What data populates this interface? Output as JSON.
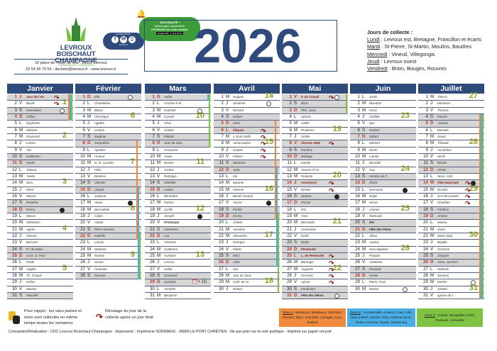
{
  "header": {
    "logo": [
      "LEVROUX",
      "BOISCHAUT",
      "CHAMPAGNE"
    ],
    "logo_sub": "COMMUNAUTÉ • COMMUNES",
    "address": "10 place de l'hôtel de ville - 36110 Levroux",
    "contact": "02 54 35 70 54 - dechets@levroux.fr - www.levroux.fr",
    "social_label": "SUIVEZ-NOUS :",
    "social_url": "levroux.fr",
    "app": {
      "title": "NOUVEAUTÉ !",
      "line1": "téléchargez l'application",
      "line2": "LEVROUX sur votre mobile",
      "store1": "Google Play",
      "store2": "App Store"
    },
    "year": "2026"
  },
  "collecte": {
    "title": "Jours de collecte :",
    "items": [
      {
        "day": "Lundi",
        "places": " : Levroux est,  Bretagne, Francillon et écarts"
      },
      {
        "day": "Mardi",
        "places": " : St-Pierre, St-Martin, Moulins, Baudres"
      },
      {
        "day": "Mercredi",
        "places": " : Vineuil, Villegongis"
      },
      {
        "day": "Jeudi",
        "places": " : Levroux ouest"
      },
      {
        "day": "Vendredi",
        "places": " : Brion, Bouges, Rouvres"
      }
    ]
  },
  "colors": {
    "zoneA": "#ef8a3c",
    "zoneB": "#4aaee6",
    "zoneC": "#7ec242",
    "header": "#2f4b7c"
  },
  "months": [
    {
      "name": "Janvier",
      "days": [
        [
          "J",
          "Jour de l'An"
        ],
        [
          "V",
          "Basile"
        ],
        [
          "S",
          "Geneviève"
        ],
        [
          "D",
          "Odilon"
        ],
        [
          "L",
          "Épiphanie"
        ],
        [
          "M",
          "Mélaine"
        ],
        [
          "M",
          "Raymond"
        ],
        [
          "J",
          "Lucien"
        ],
        [
          "V",
          "Alix"
        ],
        [
          "S",
          "Guillaume"
        ],
        [
          "D",
          "Paulin"
        ],
        [
          "L",
          "Tatiana"
        ],
        [
          "M",
          "Yvette"
        ],
        [
          "M",
          "Nina"
        ],
        [
          "J",
          "Rémi"
        ],
        [
          "V",
          "Marcel"
        ],
        [
          "S",
          "Roseline"
        ],
        [
          "D",
          "Prisca"
        ],
        [
          "L",
          "Marius"
        ],
        [
          "M",
          "Sébastien"
        ],
        [
          "M",
          "Agnès"
        ],
        [
          "J",
          "Vincent"
        ],
        [
          "V",
          "Barnard"
        ],
        [
          "S",
          "Fr. de Sales"
        ],
        [
          "D",
          "Conv. S. Paul"
        ],
        [
          "L",
          "Paule"
        ],
        [
          "M",
          "Angèle"
        ],
        [
          "M",
          "Th. d'Aquin"
        ],
        [
          "J",
          "Gildas"
        ],
        [
          "V",
          "Martine"
        ],
        [
          "S",
          "Marcelle"
        ]
      ],
      "weeks": {
        "2": "1",
        "7": "2",
        "14": "3",
        "21": "4",
        "27": "5"
      },
      "holidays": [
        1
      ],
      "moons": {
        "3": "full",
        "18": "new"
      },
      "arrows": [
        1,
        2
      ],
      "school": [
        {
          "zone": "A",
          "from": 1,
          "to": 4
        },
        {
          "zone": "B",
          "from": 1,
          "to": 4
        },
        {
          "zone": "C",
          "from": 1,
          "to": 4
        }
      ]
    },
    {
      "name": "Février",
      "days": [
        [
          "D",
          "Ella"
        ],
        [
          "L",
          "Chandeleur"
        ],
        [
          "M",
          "Blaise"
        ],
        [
          "M",
          "Véronique"
        ],
        [
          "J",
          "Agathe"
        ],
        [
          "V",
          "Gaston"
        ],
        [
          "S",
          "Eugénie"
        ],
        [
          "D",
          "Jacqueline"
        ],
        [
          "L",
          "Apolline"
        ],
        [
          "M",
          "Arnaud"
        ],
        [
          "M",
          "N.-D. Lourdes"
        ],
        [
          "J",
          "Félix"
        ],
        [
          "V",
          "Béatrice"
        ],
        [
          "S",
          "Valentin"
        ],
        [
          "D",
          "Claude"
        ],
        [
          "L",
          "Julienne"
        ],
        [
          "M",
          "Alexis"
        ],
        [
          "M",
          "Bernadette"
        ],
        [
          "J",
          "Gabin"
        ],
        [
          "V",
          "Aimée"
        ],
        [
          "S",
          "Pierre Damien"
        ],
        [
          "D",
          "Isabelle"
        ],
        [
          "L",
          "Lazare"
        ],
        [
          "M",
          "Modeste"
        ],
        [
          "M",
          "Roméo"
        ],
        [
          "J",
          "Nestor"
        ],
        [
          "V",
          "Honorine"
        ],
        [
          "S",
          "Romain"
        ]
      ],
      "weeks": {
        "4": "6",
        "11": "7",
        "18": "8",
        "25": "9"
      },
      "holidays": [],
      "moons": {
        "1": "full",
        "17": "new"
      },
      "arrows": [],
      "school": [
        {
          "zone": "A",
          "from": 8,
          "to": 22
        },
        {
          "zone": "B",
          "from": 15,
          "to": 28
        },
        {
          "zone": "C",
          "from": 22,
          "to": 28
        }
      ]
    },
    {
      "name": "Mars",
      "days": [
        [
          "D",
          "Aubin"
        ],
        [
          "L",
          "Charles le B."
        ],
        [
          "M",
          "Guénolé"
        ],
        [
          "M",
          "Casimir"
        ],
        [
          "J",
          "Olive"
        ],
        [
          "V",
          "Colette"
        ],
        [
          "S",
          "Félicité"
        ],
        [
          "D",
          "Jean de Dieu"
        ],
        [
          "L",
          "Françoise"
        ],
        [
          "M",
          "Vivian"
        ],
        [
          "M",
          "Rosine"
        ],
        [
          "J",
          "Justine"
        ],
        [
          "V",
          "Rodrigue"
        ],
        [
          "S",
          "Mathilde"
        ],
        [
          "D",
          "Louise"
        ],
        [
          "L",
          "Bénédicte"
        ],
        [
          "M",
          "Patrice"
        ],
        [
          "M",
          "Cyrille"
        ],
        [
          "J",
          "Joseph"
        ],
        [
          "V",
          "Printemps"
        ],
        [
          "S",
          "Clémence"
        ],
        [
          "D",
          "Léa"
        ],
        [
          "L",
          "Victorien"
        ],
        [
          "M",
          "Catherine"
        ],
        [
          "M",
          "Humbert"
        ],
        [
          "J",
          "Larissa"
        ],
        [
          "V",
          "Habib"
        ],
        [
          "S",
          "Gontrand"
        ],
        [
          "D",
          "Gwladys"
        ],
        [
          "L",
          "Amédée"
        ],
        [
          "M",
          "Benjamin"
        ]
      ],
      "weeks": {
        "4": "10",
        "11": "11",
        "18": "12",
        "25": "13"
      },
      "holidays": [],
      "bold": [
        20
      ],
      "moons": {
        "3": "full",
        "19": "new"
      },
      "arrows": [],
      "clock": {
        "day": 29,
        "label": "+ 1h"
      },
      "school": [
        {
          "zone": "B",
          "from": 1,
          "to": 1
        },
        {
          "zone": "C",
          "from": 1,
          "to": 8
        }
      ]
    },
    {
      "name": "Avril",
      "days": [
        [
          "M",
          "Hugues"
        ],
        [
          "J",
          "Sandrine"
        ],
        [
          "V",
          "Richard"
        ],
        [
          "S",
          "Isidore"
        ],
        [
          "D",
          "Irène"
        ],
        [
          "L",
          "Pâques"
        ],
        [
          "M",
          "J.-B.de Salle"
        ],
        [
          "M",
          "Annonciation"
        ],
        [
          "J",
          "Gautier"
        ],
        [
          "V",
          "Fulbert"
        ],
        [
          "S",
          "Stanislas"
        ],
        [
          "D",
          "Jules"
        ],
        [
          "L",
          "Ida"
        ],
        [
          "M",
          "Maxime"
        ],
        [
          "M",
          "Paterne"
        ],
        [
          "J",
          "Benoît Joseph"
        ],
        [
          "V",
          "Anicet"
        ],
        [
          "S",
          "Parfait"
        ],
        [
          "D",
          "Emma"
        ],
        [
          "L",
          "Odette"
        ],
        [
          "M",
          "Anselme"
        ],
        [
          "M",
          "Alexandre"
        ],
        [
          "J",
          "Georges"
        ],
        [
          "V",
          "Fidèle"
        ],
        [
          "S",
          "Marc"
        ],
        [
          "D",
          "Alida"
        ],
        [
          "L",
          "Zita"
        ],
        [
          "M",
          "Jour du Souv."
        ],
        [
          "M",
          "Cath. de Si."
        ],
        [
          "J",
          "Robert"
        ]
      ],
      "weeks": {
        "1": "14",
        "8": "15",
        "15": "16",
        "22": "17",
        "29": "18"
      },
      "holidays": [
        6
      ],
      "moons": {
        "2": "full",
        "17": "new"
      },
      "arrows": [
        6,
        7,
        8,
        9,
        10
      ],
      "school": [
        {
          "zone": "A",
          "from": 5,
          "to": 19
        },
        {
          "zone": "B",
          "from": 12,
          "to": 26
        },
        {
          "zone": "C",
          "from": 19,
          "to": 30
        }
      ]
    },
    {
      "name": "Mai",
      "days": [
        [
          "V",
          "F. du Travail"
        ],
        [
          "S",
          "Boris"
        ],
        [
          "D",
          "Phil., Jacq."
        ],
        [
          "L",
          "Sylvain"
        ],
        [
          "M",
          "Judith"
        ],
        [
          "M",
          "Prudence"
        ],
        [
          "J",
          "Gisèle"
        ],
        [
          "V",
          "Victoire 1945"
        ],
        [
          "S",
          "Pacôme"
        ],
        [
          "D",
          "Solange"
        ],
        [
          "L",
          "Estelle"
        ],
        [
          "M",
          "Jeanne d'Arc"
        ],
        [
          "M",
          "Rolande"
        ],
        [
          "J",
          "Ascension"
        ],
        [
          "V",
          "Denise"
        ],
        [
          "S",
          "Honoré"
        ],
        [
          "D",
          "Pascal"
        ],
        [
          "L",
          "Éric"
        ],
        [
          "M",
          "Yves"
        ],
        [
          "M",
          "Bernardin"
        ],
        [
          "J",
          "Constantin"
        ],
        [
          "V",
          "Emile"
        ],
        [
          "S",
          "Didier"
        ],
        [
          "D",
          "Pentecôte"
        ],
        [
          "L",
          "L. de Pentecôte"
        ],
        [
          "M",
          "Bérenger"
        ],
        [
          "M",
          "Augustin"
        ],
        [
          "J",
          "Germain"
        ],
        [
          "V",
          "Aymar"
        ],
        [
          "S",
          "Ferdinand"
        ],
        [
          "D",
          "Fête des Mères"
        ]
      ],
      "weeks": {
        "6": "19",
        "13": "20",
        "20": "21",
        "27": "22"
      },
      "holidays": [
        1,
        8,
        14,
        24,
        25
      ],
      "bold": [
        31
      ],
      "moons": {
        "1": "full",
        "16": "new",
        "31": "full"
      },
      "arrows": [
        1,
        8,
        14,
        15,
        25,
        26,
        27,
        28,
        29
      ],
      "school": [
        {
          "zone": "C",
          "from": 1,
          "to": 3
        }
      ]
    },
    {
      "name": "Juin",
      "days": [
        [
          "L",
          "Justin"
        ],
        [
          "M",
          "Blandine"
        ],
        [
          "M",
          "Kévin"
        ],
        [
          "J",
          "Clotilde"
        ],
        [
          "V",
          "Igor"
        ],
        [
          "S",
          "Norbert"
        ],
        [
          "D",
          "Gilbert"
        ],
        [
          "L",
          "Médard"
        ],
        [
          "M",
          "Diane"
        ],
        [
          "M",
          "Landry"
        ],
        [
          "J",
          "Barnabé"
        ],
        [
          "V",
          "Guy"
        ],
        [
          "S",
          "Antoine de P."
        ],
        [
          "D",
          "Élisée"
        ],
        [
          "L",
          "Germaine"
        ],
        [
          "M",
          "Régis"
        ],
        [
          "M",
          "Hervé"
        ],
        [
          "J",
          "Léonce"
        ],
        [
          "V",
          "Romuald"
        ],
        [
          "S",
          "Été"
        ],
        [
          "D",
          "Fête des Pères"
        ],
        [
          "L",
          "Alban"
        ],
        [
          "M",
          "Audrey"
        ],
        [
          "M",
          "Jean-Baptiste"
        ],
        [
          "J",
          "Prosper"
        ],
        [
          "V",
          "Anthelme"
        ],
        [
          "S",
          "Fernand"
        ],
        [
          "D",
          "Irénée"
        ],
        [
          "L",
          "Pierre, Paul"
        ],
        [
          "M",
          "Martial"
        ]
      ],
      "weeks": {
        "4": "23",
        "12": "24",
        "18": "25",
        "24": "26"
      },
      "holidays": [],
      "bold": [
        20,
        21
      ],
      "moons": {
        "15": "new",
        "30": "full"
      },
      "arrows": [],
      "school": []
    },
    {
      "name": "Juillet",
      "days": [
        [
          "M",
          "Thierry"
        ],
        [
          "J",
          "Martinien"
        ],
        [
          "V",
          "Thomas"
        ],
        [
          "S",
          "Florent"
        ],
        [
          "D",
          "Antoine"
        ],
        [
          "L",
          "Mariette"
        ],
        [
          "M",
          "Raoul"
        ],
        [
          "M",
          "Thibault"
        ],
        [
          "J",
          "Amandine"
        ],
        [
          "V",
          "Ulrich"
        ],
        [
          "S",
          "Benoît"
        ],
        [
          "D",
          "Olivier"
        ],
        [
          "L",
          "Henri, Joël"
        ],
        [
          "M",
          "Fête Nationale"
        ],
        [
          "M",
          "Donald"
        ],
        [
          "J",
          "N-D Mt-Carmel"
        ],
        [
          "V",
          "Charlotte"
        ],
        [
          "S",
          "Frédéric"
        ],
        [
          "D",
          "Arsène"
        ],
        [
          "L",
          "Marina"
        ],
        [
          "M",
          "Victor"
        ],
        [
          "M",
          "Marie-Mad."
        ],
        [
          "J",
          "Brigitte"
        ],
        [
          "V",
          "Christine"
        ],
        [
          "S",
          "Jacques"
        ],
        [
          "D",
          "Anne, Joachim"
        ],
        [
          "L",
          "Nathalie"
        ],
        [
          "M",
          "Samson"
        ],
        [
          "M",
          "Marthe"
        ],
        [
          "J",
          "Juliette"
        ],
        [
          "V",
          "Ignace de L."
        ]
      ],
      "weeks": {
        "1": "27",
        "8": "28",
        "15": "29",
        "22": "30",
        "30": "31"
      },
      "holidays": [
        14
      ],
      "moons": {
        "14": "new",
        "29": "full"
      },
      "arrows": [
        14,
        15,
        16,
        17
      ],
      "school": [
        {
          "zone": "A",
          "from": 4,
          "to": 31
        },
        {
          "zone": "B",
          "from": 4,
          "to": 31
        },
        {
          "zone": "C",
          "from": 4,
          "to": 31
        }
      ]
    }
  ],
  "footer": {
    "bags": "Pour rappel : les sacs jaunes et noirs sont collectés en même temps toutes les semaines",
    "shift": "Décalage du jour de la collecte après un jour férié",
    "zones": [
      {
        "label": "Zone A",
        "cities": " : Besançon, Bordeaux, Clermont-Ferrand, Dijon, Grenoble, Limoges, Lyon, Poitiers"
      },
      {
        "label": "Zone B",
        "cities": " : Aix-Marseille, Amiens, Caen, Lille, Nancy-Metz, Nantes, Nice, Orléans-Tours, Reims, Rennes, Rouen, Strasbourg"
      },
      {
        "label": "Zone C",
        "cities": " : Créteil, Montpellier, Paris, Toulouse, Versailles"
      }
    ],
    "credits": "Conception/Réalisation : CDC Levroux Boischaut Champagne - Impression : Imprimerie SODIMASS - 36800 LE PONT CHRÉTIEN - Ne pas jeter sur la voie publique - Imprimé sur papier recyclé"
  }
}
